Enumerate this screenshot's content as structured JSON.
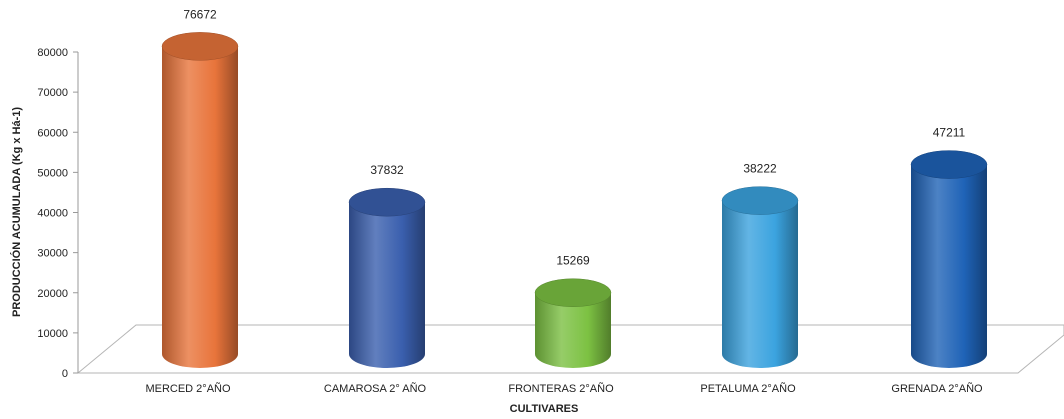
{
  "chart_data": {
    "type": "bar",
    "categories": [
      "MERCED 2°AÑO",
      "CAMAROSA 2° AÑO",
      "FRONTERAS 2°AÑO",
      "PETALUMA 2°AÑO",
      "GRENADA 2°AÑO"
    ],
    "values": [
      76672,
      37832,
      15269,
      38222,
      47211
    ],
    "bar_colors": [
      "#E8743B",
      "#3A5FAE",
      "#7CC142",
      "#3BA3DF",
      "#1F63B7"
    ],
    "xlabel": "CULTIVARES",
    "ylabel": "PRODUCCIÓN ACUMULADA (Kg x Há-1)",
    "ylim": [
      0,
      80000
    ],
    "yticks": [
      0,
      10000,
      20000,
      30000,
      40000,
      50000,
      60000,
      70000,
      80000
    ],
    "grid": false,
    "style": "3d-cylinder"
  }
}
